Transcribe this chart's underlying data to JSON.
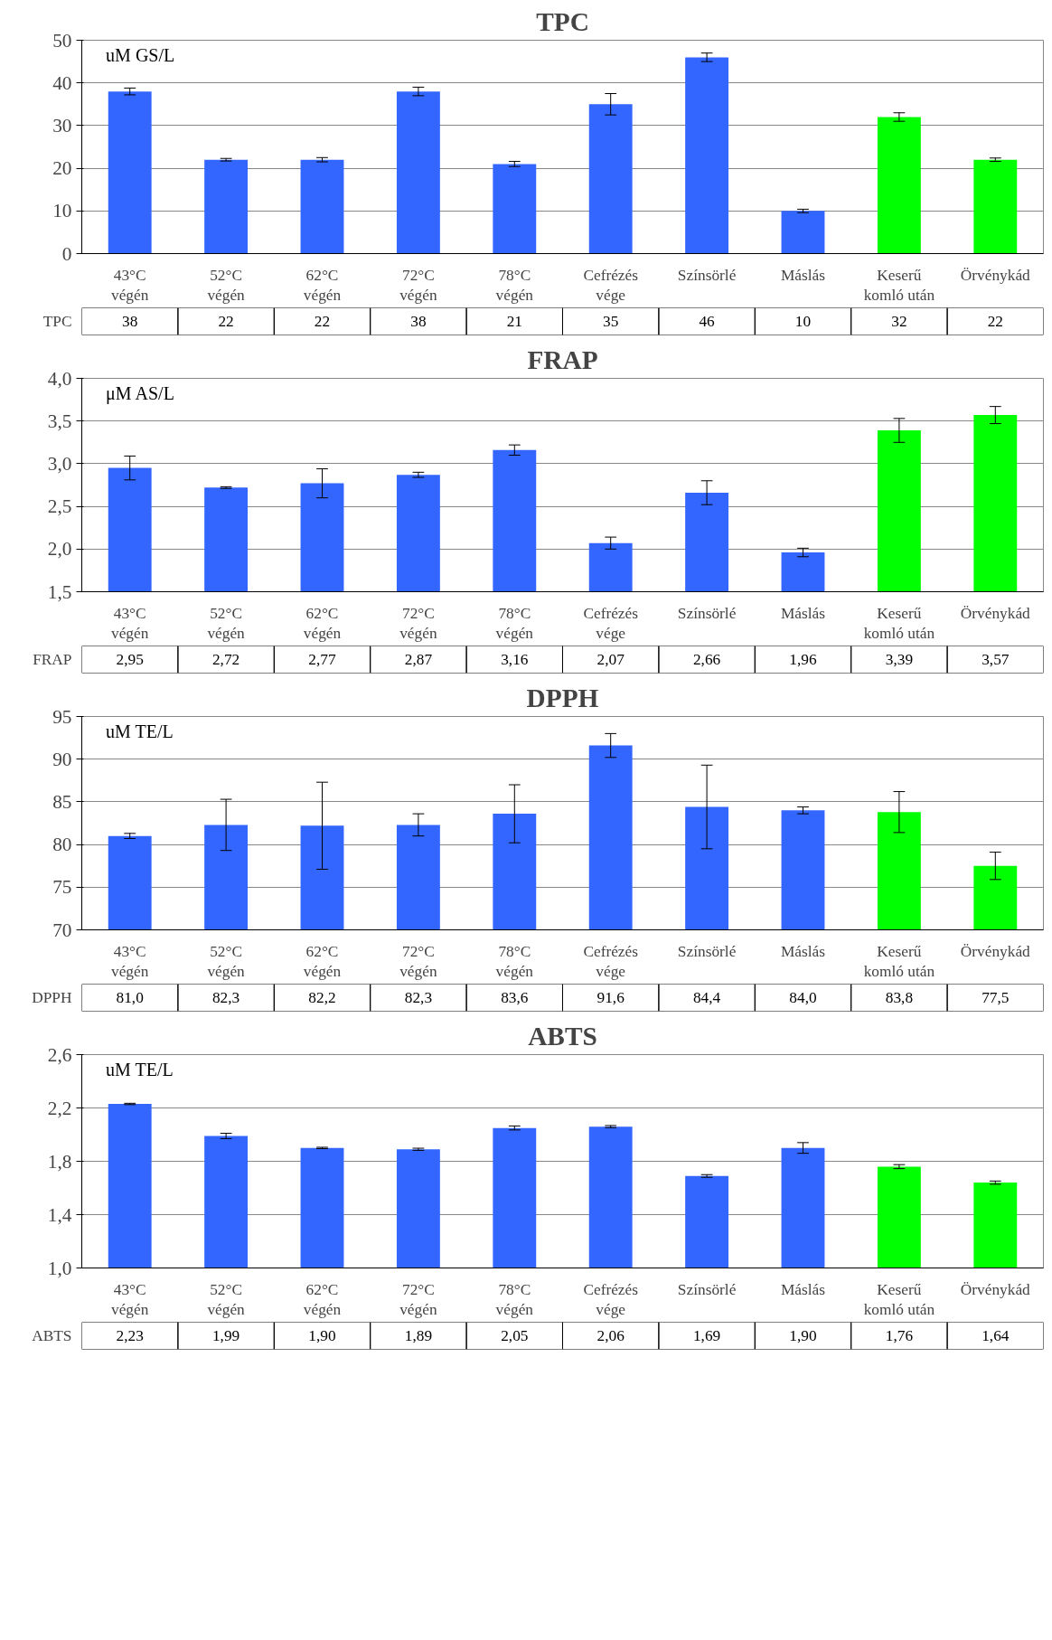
{
  "chart_data": [
    {
      "type": "bar",
      "title": "TPC",
      "annotations": [
        "uM GS/L"
      ],
      "categories": [
        "43°C végén",
        "52°C végén",
        "62°C végén",
        "72°C végén",
        "78°C végén",
        "Cefrézés vége",
        "Színsörlé",
        "Máslás",
        "Keserű komló után",
        "Örvénykád"
      ],
      "series": [
        {
          "name": "TPC",
          "colors": [
            "#3366ff",
            "#3366ff",
            "#3366ff",
            "#3366ff",
            "#3366ff",
            "#3366ff",
            "#3366ff",
            "#3366ff",
            "#00ff00",
            "#00ff00"
          ],
          "values": [
            38,
            22,
            22,
            38,
            21,
            35,
            46,
            10,
            32,
            22
          ],
          "value_labels": [
            "38",
            "22",
            "22",
            "38",
            "21",
            "35",
            "46",
            "10",
            "32",
            "22"
          ],
          "errors": [
            0.8,
            0.3,
            0.5,
            1.0,
            0.6,
            2.5,
            1.0,
            0.4,
            1.0,
            0.4
          ]
        }
      ],
      "ylim": [
        0,
        50
      ],
      "yticks": [
        0,
        10,
        20,
        30,
        40,
        50
      ],
      "grid": "y",
      "legend": false
    },
    {
      "type": "bar",
      "title": "FRAP",
      "annotations": [
        "μM AS/L"
      ],
      "categories": [
        "43°C végén",
        "52°C végén",
        "62°C végén",
        "72°C végén",
        "78°C végén",
        "Cefrézés vége",
        "Színsörlé",
        "Máslás",
        "Keserű komló után",
        "Örvénykád"
      ],
      "series": [
        {
          "name": "FRAP",
          "colors": [
            "#3366ff",
            "#3366ff",
            "#3366ff",
            "#3366ff",
            "#3366ff",
            "#3366ff",
            "#3366ff",
            "#3366ff",
            "#00ff00",
            "#00ff00"
          ],
          "values": [
            2.95,
            2.72,
            2.77,
            2.87,
            3.16,
            2.07,
            2.66,
            1.96,
            3.39,
            3.57
          ],
          "value_labels": [
            "2,95",
            "2,72",
            "2,77",
            "2,87",
            "3,16",
            "2,07",
            "2,66",
            "1,96",
            "3,39",
            "3,57"
          ],
          "errors": [
            0.14,
            0.01,
            0.17,
            0.03,
            0.06,
            0.07,
            0.14,
            0.05,
            0.14,
            0.1
          ]
        }
      ],
      "ylim": [
        1.5,
        4.0
      ],
      "yticks": [
        {
          "value": 1.5,
          "label": "1,5"
        },
        {
          "value": 2.0,
          "label": "2,0"
        },
        {
          "value": 2.5,
          "label": "2,5"
        },
        {
          "value": 3.0,
          "label": "3,0"
        },
        {
          "value": 3.5,
          "label": "3,5"
        },
        {
          "value": 4.0,
          "label": "4,0"
        }
      ],
      "grid": "y",
      "legend": false
    },
    {
      "type": "bar",
      "title": "DPPH",
      "annotations": [
        "uM TE/L"
      ],
      "categories": [
        "43°C végén",
        "52°C végén",
        "62°C végén",
        "72°C végén",
        "78°C végén",
        "Cefrézés vége",
        "Színsörlé",
        "Máslás",
        "Keserű komló után",
        "Örvénykád"
      ],
      "series": [
        {
          "name": "DPPH",
          "colors": [
            "#3366ff",
            "#3366ff",
            "#3366ff",
            "#3366ff",
            "#3366ff",
            "#3366ff",
            "#3366ff",
            "#3366ff",
            "#00ff00",
            "#00ff00"
          ],
          "values": [
            81.0,
            82.3,
            82.2,
            82.3,
            83.6,
            91.6,
            84.4,
            84.0,
            83.8,
            77.5
          ],
          "value_labels": [
            "81,0",
            "82,3",
            "82,2",
            "82,3",
            "83,6",
            "91,6",
            "84,4",
            "84,0",
            "83,8",
            "77,5"
          ],
          "errors": [
            0.3,
            3.0,
            5.1,
            1.3,
            3.4,
            1.4,
            4.9,
            0.4,
            2.4,
            1.6
          ]
        }
      ],
      "ylim": [
        70,
        95
      ],
      "yticks": [
        70,
        75,
        80,
        85,
        90,
        95
      ],
      "grid": "y",
      "legend": false
    },
    {
      "type": "bar",
      "title": "ABTS",
      "annotations": [
        "uM TE/L"
      ],
      "categories": [
        "43°C végén",
        "52°C végén",
        "62°C végén",
        "72°C végén",
        "78°C végén",
        "Cefrézés vége",
        "Színsörlé",
        "Máslás",
        "Keserű komló után",
        "Örvénykád"
      ],
      "series": [
        {
          "name": "ABTS",
          "colors": [
            "#3366ff",
            "#3366ff",
            "#3366ff",
            "#3366ff",
            "#3366ff",
            "#3366ff",
            "#3366ff",
            "#3366ff",
            "#00ff00",
            "#00ff00"
          ],
          "values": [
            2.23,
            1.99,
            1.9,
            1.89,
            2.05,
            2.06,
            1.69,
            1.9,
            1.76,
            1.64
          ],
          "value_labels": [
            "2,23",
            "1,99",
            "1,90",
            "1,89",
            "2,05",
            "2,06",
            "1,69",
            "1,90",
            "1,76",
            "1,64"
          ],
          "errors": [
            0.005,
            0.02,
            0.005,
            0.008,
            0.015,
            0.008,
            0.01,
            0.04,
            0.015,
            0.012
          ]
        }
      ],
      "ylim": [
        1.0,
        2.6
      ],
      "yticks": [
        {
          "value": 1.0,
          "label": "1,0"
        },
        {
          "value": 1.4,
          "label": "1,4"
        },
        {
          "value": 1.8,
          "label": "1,8"
        },
        {
          "value": 2.2,
          "label": "2,2"
        },
        {
          "value": 2.6,
          "label": "2,6"
        }
      ],
      "grid": "y",
      "legend": false
    }
  ]
}
